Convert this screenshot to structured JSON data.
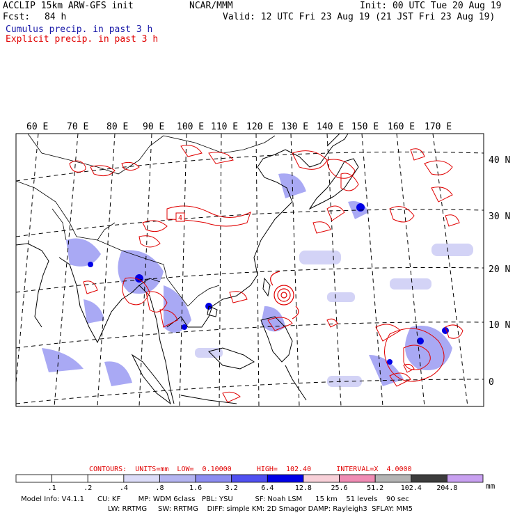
{
  "header": {
    "model_line": "ACCLIP 15km ARW-GFS init",
    "fcst_label": "Fcst:",
    "fcst_value": "84 h",
    "org": "NCAR/MMM",
    "init": "Init: 00 UTC Tue 20 Aug 19",
    "valid": "Valid: 12 UTC Fri 23 Aug 19 (21 JST Fri 23 Aug 19)",
    "cumulus": "Cumulus precip. in past 3 h",
    "explicit": "Explicit precip. in past 3 h"
  },
  "map": {
    "lon_labels": [
      "60 E",
      "70 E",
      "80 E",
      "90 E",
      "100 E",
      "110 E",
      "120 E",
      "130 E",
      "140 E",
      "150 E",
      "160 E",
      "170 E"
    ],
    "lat_labels": [
      "40 N",
      "30 N",
      "20 N",
      "10 N",
      "0"
    ],
    "contour_label": "4"
  },
  "legend": {
    "contours": "CONTOURS:  UNITS=mm  LOW=  0.10000      HIGH=  102.40      INTERVAL=X  4.0000",
    "bins": [
      {
        "label": ".1",
        "color": "#ffffff"
      },
      {
        "label": ".2",
        "color": "#ffffff"
      },
      {
        "label": ".4",
        "color": "#ffffff"
      },
      {
        "label": ".8",
        "color": "#dcdcf8"
      },
      {
        "label": "1.6",
        "color": "#b4b4f0"
      },
      {
        "label": "3.2",
        "color": "#8c8cf0"
      },
      {
        "label": "6.4",
        "color": "#5050f0"
      },
      {
        "label": "12.8",
        "color": "#0000e6"
      },
      {
        "label": "25.6",
        "color": "#f8d0d8"
      },
      {
        "label": "51.2",
        "color": "#f08cb4"
      },
      {
        "label": "102.4",
        "color": "#b4b4b4"
      },
      {
        "label": "204.8",
        "color": "#3c3c3c"
      },
      {
        "label": "",
        "color": "#c8a0f0"
      }
    ],
    "units": "mm"
  },
  "info": {
    "line1": "Model Info: V4.1.1      CU: KF        MP: WDM 6class   PBL: YSU          SF: Noah LSM      15 km    51 levels    90 sec",
    "line2": "LW: RRTMG     SW: RRTMG    DIFF: simple KM: 2D Smagor DAMP: Rayleigh3  SFLAY: MM5"
  }
}
